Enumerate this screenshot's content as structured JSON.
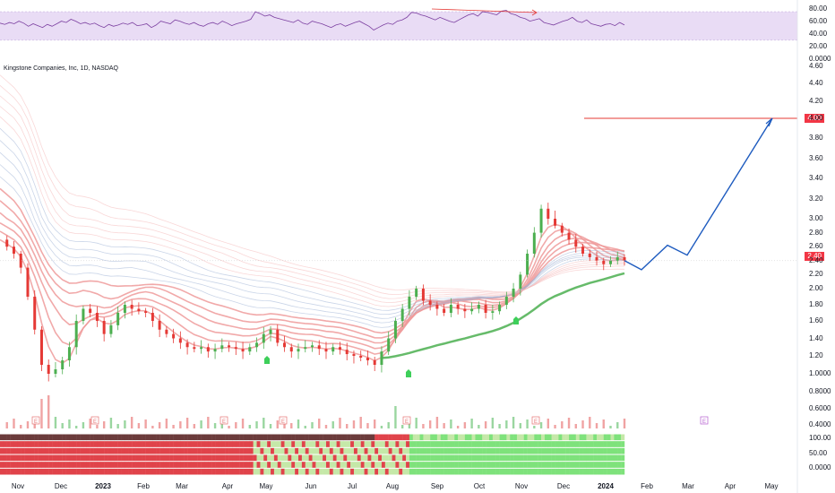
{
  "chart_data": [
    {
      "type": "line",
      "panel": "oscillator",
      "series": [
        {
          "values": [
            57,
            55,
            58,
            56,
            60,
            57,
            52,
            56,
            53,
            50,
            55,
            52,
            56,
            60,
            58,
            63,
            60,
            56,
            58,
            55,
            57,
            53,
            50,
            55,
            52,
            54,
            57,
            55,
            58,
            53,
            54,
            56,
            50,
            54,
            60,
            58,
            56,
            62,
            60,
            57,
            55,
            58,
            54,
            52,
            56,
            58,
            55,
            60,
            57,
            53,
            56,
            58,
            60,
            63,
            75,
            72,
            68,
            70,
            66,
            64,
            62,
            60,
            58,
            62,
            57,
            55,
            60,
            58,
            56,
            53,
            50,
            54,
            56,
            52,
            55,
            58,
            60,
            56,
            52,
            46,
            50,
            54,
            57,
            55,
            60,
            62,
            66,
            74,
            73,
            70,
            68,
            65,
            62,
            66,
            63,
            60,
            58,
            62,
            66,
            70,
            72,
            68,
            75,
            74,
            72,
            70,
            76,
            77,
            72,
            70,
            66,
            64,
            60,
            62,
            64,
            58,
            56,
            54,
            57,
            60,
            62,
            66,
            60,
            58,
            62,
            56,
            54,
            52,
            55,
            56,
            53,
            58,
            54
          ]
        }
      ],
      "y_ticks": [
        "80.00",
        "60.00",
        "40.00",
        "20.00",
        "0.0000"
      ],
      "ylim": [
        0,
        85
      ]
    },
    {
      "type": "candlestick",
      "panel": "price",
      "title": "Kingstone Companies, Inc, 1D, NASDAQ",
      "x_ticks": [
        "Nov",
        "Dec",
        "2023",
        "Feb",
        "Mar",
        "Apr",
        "May",
        "Jun",
        "Jul",
        "Aug",
        "Sep",
        "Oct",
        "Nov",
        "Dec",
        "2024",
        "Feb",
        "Mar",
        "Apr",
        "May"
      ],
      "y_ticks": [
        "4.60",
        "4.40",
        "4.20",
        "4.00",
        "3.80",
        "3.60",
        "3.40",
        "3.20",
        "3.00",
        "2.80",
        "2.60",
        "2.40",
        "2.20",
        "2.00",
        "1.80",
        "1.60",
        "1.40",
        "1.20",
        "1.0000",
        "0.8000",
        "0.6000",
        "0.4000"
      ],
      "current_price": "2.40",
      "target_price": "4.00",
      "close_path": [
        2.7,
        2.6,
        2.5,
        2.3,
        1.9,
        1.5,
        1.1,
        1.0,
        1.05,
        1.15,
        1.3,
        1.6,
        1.75,
        1.7,
        1.6,
        1.45,
        1.55,
        1.7,
        1.8,
        1.75,
        1.72,
        1.7,
        1.6,
        1.5,
        1.45,
        1.4,
        1.35,
        1.3,
        1.28,
        1.3,
        1.25,
        1.28,
        1.32,
        1.3,
        1.28,
        1.25,
        1.3,
        1.35,
        1.45,
        1.5,
        1.35,
        1.3,
        1.25,
        1.28,
        1.3,
        1.32,
        1.28,
        1.25,
        1.3,
        1.27,
        1.22,
        1.2,
        1.18,
        1.15,
        1.1,
        1.25,
        1.4,
        1.6,
        1.75,
        1.9,
        2.0,
        1.85,
        1.8,
        1.75,
        1.7,
        1.8,
        1.75,
        1.72,
        1.75,
        1.8,
        1.7,
        1.72,
        1.8,
        1.9,
        2.0,
        2.2,
        2.5,
        2.8,
        3.1,
        3.0,
        2.9,
        2.8,
        2.7,
        2.6,
        2.5,
        2.45,
        2.4,
        2.35,
        2.4,
        2.45,
        2.4
      ],
      "projection": [
        2.4,
        2.27,
        2.62,
        2.48,
        4.0
      ],
      "projection_x_ticks": [
        "Jan",
        "Feb",
        "Mar",
        "Apr",
        "May"
      ],
      "earnings_markers": [
        "E",
        "E",
        "E",
        "E",
        "E",
        "E"
      ]
    },
    {
      "type": "heatmap",
      "panel": "breadth",
      "y_ticks": [
        "100.00",
        "50.00",
        "0.0000"
      ],
      "rows": 6
    }
  ],
  "colors": {
    "up": "#4caf50",
    "down": "#e53935",
    "rsi_band": "#e9dcf5",
    "rsi_line": "#7b3fa0",
    "projection": "#1e5bbf",
    "target_line": "#e53935",
    "ribbon_red": "#ef9a9a",
    "ribbon_blue": "#9fb3d6",
    "ribbon_green": "#66bb6a"
  }
}
